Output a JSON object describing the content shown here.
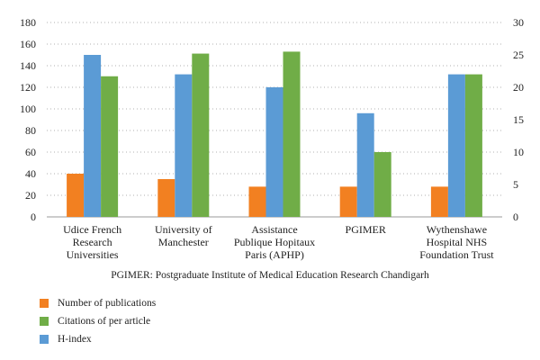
{
  "chart_data": {
    "type": "bar",
    "categories": [
      [
        "Udice French",
        "Research",
        "Universities"
      ],
      [
        "University of",
        "Manchester"
      ],
      [
        "Assistance",
        "Publique Hopitaux",
        "Paris (APHP)"
      ],
      [
        "PGIMER"
      ],
      [
        "Wythenshawe",
        "Hospital NHS",
        "Foundation Trust"
      ]
    ],
    "series": [
      {
        "name": "Number of publications",
        "color": "#f28021",
        "axis": "left",
        "values": [
          40,
          35,
          28,
          28,
          28
        ]
      },
      {
        "name": "H-index",
        "color": "#5b9bd5",
        "axis": "left",
        "values": [
          150,
          132,
          120,
          96,
          132
        ]
      },
      {
        "name": "Citations of per article",
        "color": "#70ad47",
        "axis": "right",
        "values": [
          21.7,
          25.2,
          25.5,
          10,
          22
        ]
      }
    ],
    "left_axis": {
      "min": 0,
      "max": 180,
      "ticks": [
        0,
        20,
        40,
        60,
        80,
        100,
        120,
        140,
        160,
        180
      ]
    },
    "right_axis": {
      "min": 0,
      "max": 30,
      "ticks": [
        0,
        5,
        10,
        15,
        20,
        25,
        30
      ]
    },
    "grid": "dotted-horizontal",
    "legend_position": "bottom-left"
  },
  "note": "PGIMER: Postgraduate Institute of Medical Education Research Chandigarh",
  "legend": [
    {
      "label": "Number of publications",
      "color": "#f28021"
    },
    {
      "label": "Citations of per article",
      "color": "#70ad47"
    },
    {
      "label": "H-index",
      "color": "#5b9bd5"
    }
  ]
}
